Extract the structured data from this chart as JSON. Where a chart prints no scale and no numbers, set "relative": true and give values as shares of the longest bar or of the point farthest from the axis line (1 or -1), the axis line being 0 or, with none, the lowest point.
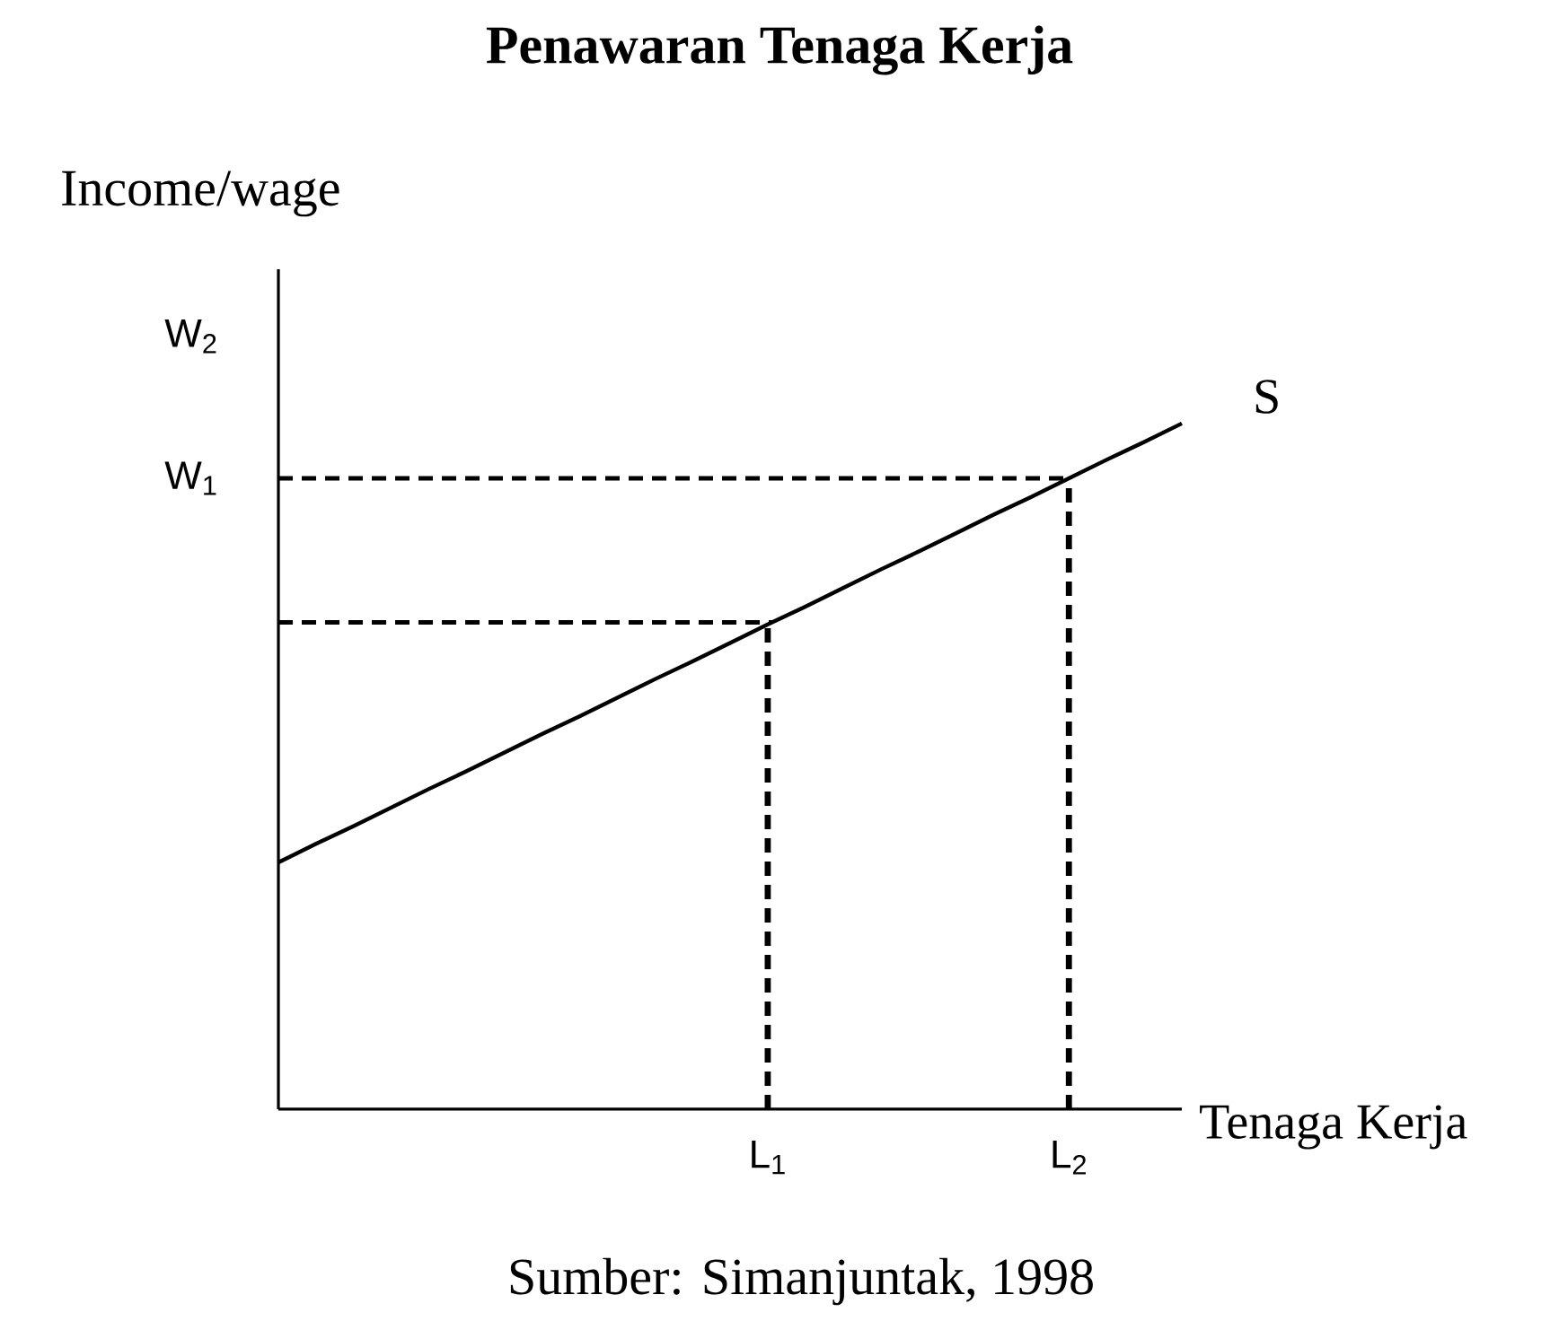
{
  "chart_data": {
    "type": "line",
    "title": "Penawaran Tenaga Kerja",
    "xlabel": "Tenaga Kerja",
    "ylabel": "Income/wage",
    "relative": true,
    "categories": [
      null,
      null,
      null,
      null,
      null,
      null,
      null,
      null,
      null,
      null,
      null,
      null,
      null,
      "L$_{1}$",
      null,
      null,
      null,
      null,
      null,
      null,
      null,
      "L$_{2}$",
      null,
      null,
      null
    ],
    "annotations": [
      "Sumber: Simanjuntak, 1998",
      "W$_{2}$"
    ],
    "ref_lines": [
      {
        "axis": "y",
        "value": 0.71,
        "color": "#000000",
        "line_style": "dashed"
      },
      {
        "axis": "y",
        "value": 0.92,
        "label": "W$_{1}$",
        "color": "#000000",
        "line_style": "dashed"
      },
      {
        "axis": "x",
        "value": "L$_{1}$",
        "color": "#000000",
        "line_style": "dotted"
      },
      {
        "axis": "x",
        "value": "L$_{2}$",
        "color": "#000000",
        "line_style": "dotted"
      }
    ],
    "marker": "none",
    "series": [
      {
        "name": "S",
        "color": "#000000",
        "line_style": "solid",
        "values": [
          0.36,
          0.387,
          0.413,
          0.44,
          0.467,
          0.493,
          0.52,
          0.547,
          0.573,
          0.6,
          0.627,
          0.653,
          0.68,
          0.707,
          0.733,
          0.76,
          0.787,
          0.813,
          0.84,
          0.867,
          0.893,
          0.92,
          0.947,
          0.973,
          1.0
        ]
      }
    ]
  }
}
